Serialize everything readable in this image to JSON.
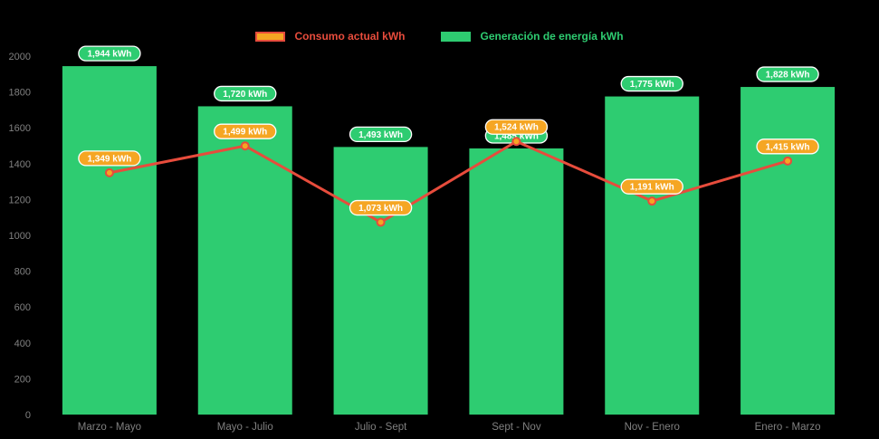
{
  "chart_data": {
    "type": "bar+line",
    "title": "",
    "categories": [
      "Marzo - Mayo",
      "Mayo - Julio",
      "Julio - Sept",
      "Sept - Nov",
      "Nov - Enero",
      "Enero - Marzo"
    ],
    "series": [
      {
        "name": "Generación de energía kWh",
        "type": "bar",
        "color": "#2ecc71",
        "values": [
          1944,
          1720,
          1493,
          1485,
          1775,
          1828
        ],
        "labels": [
          "1,944 kWh",
          "1,720 kWh",
          "1,493 kWh",
          "1,485 kWh",
          "1,775 kWh",
          "1,828 kWh"
        ]
      },
      {
        "name": "Consumo actual kWh",
        "type": "line",
        "color": "#e74c3c",
        "point_color": "#f5a623",
        "values": [
          1349,
          1499,
          1073,
          1524,
          1191,
          1415
        ],
        "labels": [
          "1,349 kWh",
          "1,499 kWh",
          "1,073 kWh",
          "1,524 kWh",
          "1,191 kWh",
          "1,415 kWh"
        ]
      }
    ],
    "ylim": [
      0,
      2000
    ],
    "ytick_step": 200,
    "yticks": [
      "0",
      "200",
      "400",
      "600",
      "800",
      "1000",
      "1200",
      "1400",
      "1600",
      "1800",
      "2000"
    ],
    "grid": false,
    "legend_position": "top",
    "background": "#000000",
    "axis_color": "#808080",
    "label_text_color": "#ffffff"
  }
}
